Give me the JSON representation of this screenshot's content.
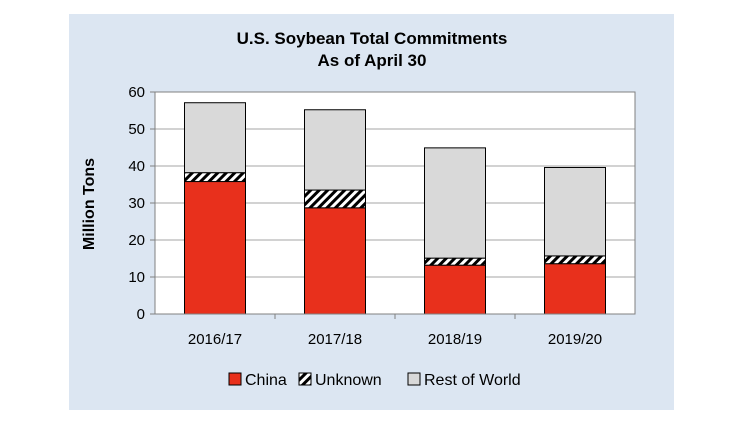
{
  "chart_data": {
    "type": "bar",
    "stacked": true,
    "title": "U.S. Soybean Total Commitments",
    "subtitle": "As of April 30",
    "ylabel": "Million Tons",
    "xlabel": "",
    "ylim": [
      0,
      60
    ],
    "yticks": [
      0,
      10,
      20,
      30,
      40,
      50,
      60
    ],
    "grid": true,
    "legend_position": "bottom",
    "categories": [
      "2016/17",
      "2017/18",
      "2018/19",
      "2019/20"
    ],
    "series": [
      {
        "name": "China",
        "values": [
          35.8,
          28.7,
          13.2,
          13.6
        ],
        "color": "#e8301c",
        "pattern": "solid"
      },
      {
        "name": "Unknown",
        "values": [
          2.4,
          4.8,
          1.9,
          2.1
        ],
        "color": "#ffffff",
        "pattern": "diagonal-hatch"
      },
      {
        "name": "Rest of World",
        "values": [
          18.9,
          21.7,
          29.8,
          23.9
        ],
        "color": "#d9d9d9",
        "pattern": "solid"
      }
    ]
  }
}
